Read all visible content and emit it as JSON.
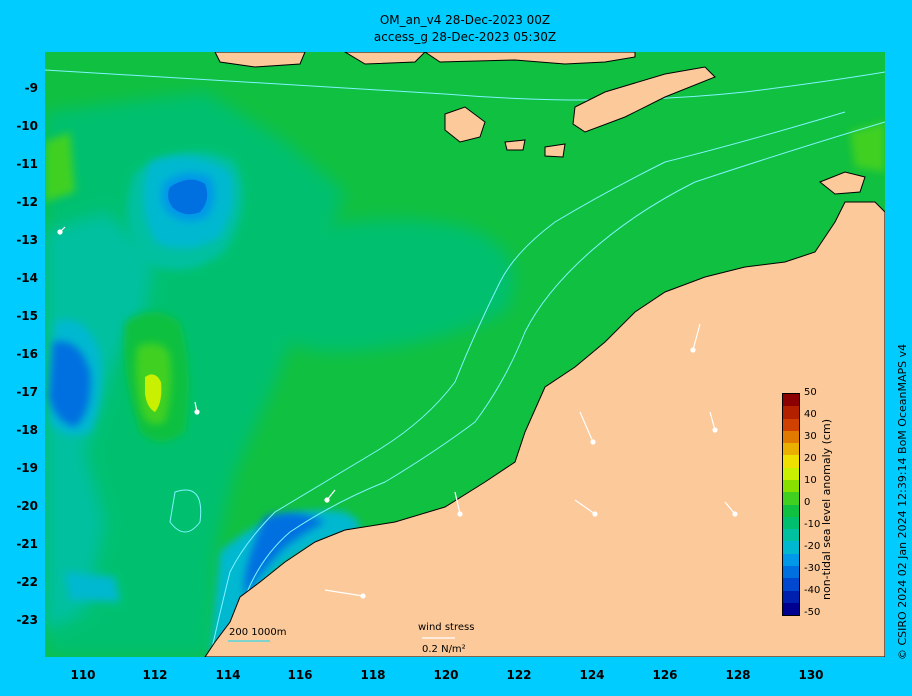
{
  "title_line1": "OM_an_v4  28-Dec-2023 00Z",
  "title_line2": "access_g 28-Dec-2023 05:30Z",
  "lat_labels": [
    "-9",
    "-10",
    "-11",
    "-12",
    "-13",
    "-14",
    "-15",
    "-16",
    "-17",
    "-18",
    "-19",
    "-20",
    "-21",
    "-22",
    "-23"
  ],
  "lon_labels": [
    "110",
    "112",
    "114",
    "116",
    "118",
    "120",
    "122",
    "124",
    "126",
    "128",
    "130"
  ],
  "colorbar": {
    "label": "non-tidal sea level anomaly (cm)",
    "ticks": [
      "50",
      "40",
      "30",
      "20",
      "10",
      "0",
      "-10",
      "-20",
      "-30",
      "-40",
      "-50"
    ],
    "colors": [
      "#8b0000",
      "#b22000",
      "#d04000",
      "#e07a00",
      "#eab000",
      "#f0e000",
      "#c8f000",
      "#88e000",
      "#40d020",
      "#10c040",
      "#00c070",
      "#00c0a0",
      "#00b8d0",
      "#0098e8",
      "#0070e0",
      "#0048d0",
      "#0020b0",
      "#000090"
    ]
  },
  "legend": {
    "isobath_label": "200  1000m",
    "wind_title": "wind stress",
    "wind_scale": "0.2 N/m²"
  },
  "credit": "© CSIRO 2024   02 Jan 2024 12:39:14 BoM OceanMAPS v4",
  "colors": {
    "background": "#00ccff",
    "land": "#fbc99a",
    "contour": "#7ff4ff"
  }
}
